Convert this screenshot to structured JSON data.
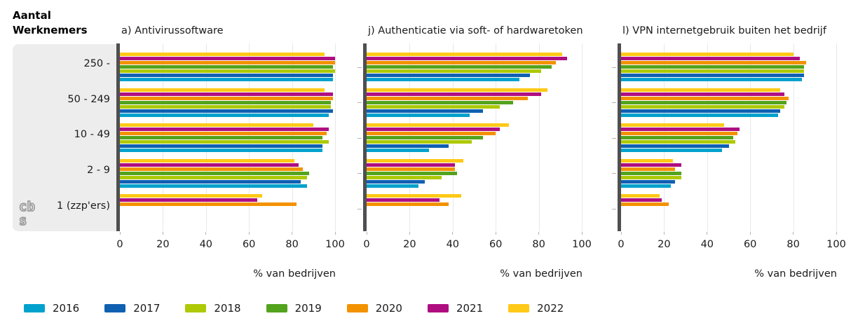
{
  "header": {
    "line1": "Aantal",
    "line2": "Werknemers"
  },
  "axis": {
    "x_ticks": [
      0,
      20,
      40,
      60,
      80,
      100
    ],
    "x_label": "% van bedrijven",
    "xlim": [
      0,
      100
    ]
  },
  "categories": [
    "250 -",
    "50 - 249",
    "10 - 49",
    "2 - 9",
    "1 (zzp'ers)"
  ],
  "legend": {
    "items": [
      {
        "label": "2016",
        "color": "#00a1cd"
      },
      {
        "label": "2017",
        "color": "#1060b2"
      },
      {
        "label": "2018",
        "color": "#aec905"
      },
      {
        "label": "2019",
        "color": "#53a31d"
      },
      {
        "label": "2020",
        "color": "#f39200"
      },
      {
        "label": "2021",
        "color": "#af0e80"
      },
      {
        "label": "2022",
        "color": "#ffc917"
      }
    ]
  },
  "logo": {
    "name": "cbs-logo",
    "text_top": "cb",
    "text_bottom": "s"
  },
  "chart_data": [
    {
      "type": "bar",
      "orientation": "horizontal",
      "title": "a) Antivirussoftware",
      "xlabel": "% van bedrijven",
      "xlim": [
        0,
        100
      ],
      "grid": true,
      "categories": [
        "250 -",
        "50 - 249",
        "10 - 49",
        "2 - 9",
        "1 (zzp'ers)"
      ],
      "series": [
        {
          "name": "2016",
          "values": [
            99,
            97,
            94,
            87,
            null
          ]
        },
        {
          "name": "2017",
          "values": [
            99,
            99,
            94,
            84,
            null
          ]
        },
        {
          "name": "2018",
          "values": [
            100,
            98,
            97,
            87,
            null
          ]
        },
        {
          "name": "2019",
          "values": [
            99,
            98,
            94,
            88,
            null
          ]
        },
        {
          "name": "2020",
          "values": [
            100,
            99,
            96,
            85,
            82
          ]
        },
        {
          "name": "2021",
          "values": [
            100,
            99,
            97,
            83,
            64
          ]
        },
        {
          "name": "2022",
          "values": [
            95,
            95,
            90,
            81,
            66
          ]
        }
      ]
    },
    {
      "type": "bar",
      "orientation": "horizontal",
      "title": "j) Authenticatie via soft- of hardwaretoken",
      "xlabel": "% van bedrijven",
      "xlim": [
        0,
        100
      ],
      "grid": true,
      "categories": [
        "250 -",
        "50 - 249",
        "10 - 49",
        "2 - 9",
        "1 (zzp'ers)"
      ],
      "series": [
        {
          "name": "2016",
          "values": [
            71,
            48,
            29,
            24,
            null
          ]
        },
        {
          "name": "2017",
          "values": [
            76,
            54,
            38,
            27,
            null
          ]
        },
        {
          "name": "2018",
          "values": [
            81,
            62,
            49,
            35,
            null
          ]
        },
        {
          "name": "2019",
          "values": [
            86,
            68,
            54,
            42,
            null
          ]
        },
        {
          "name": "2020",
          "values": [
            88,
            75,
            60,
            41,
            38
          ]
        },
        {
          "name": "2021",
          "values": [
            93,
            81,
            62,
            41,
            34
          ]
        },
        {
          "name": "2022",
          "values": [
            91,
            84,
            66,
            45,
            44
          ]
        }
      ]
    },
    {
      "type": "bar",
      "orientation": "horizontal",
      "title": "l) VPN internetgebruik buiten het bedrijf",
      "xlabel": "% van bedrijven",
      "xlim": [
        0,
        100
      ],
      "grid": true,
      "categories": [
        "250 -",
        "50 - 249",
        "10 - 49",
        "2 - 9",
        "1 (zzp'ers)"
      ],
      "series": [
        {
          "name": "2016",
          "values": [
            84,
            73,
            47,
            23,
            null
          ]
        },
        {
          "name": "2017",
          "values": [
            85,
            74,
            50,
            25,
            null
          ]
        },
        {
          "name": "2018",
          "values": [
            85,
            76,
            53,
            28,
            null
          ]
        },
        {
          "name": "2019",
          "values": [
            85,
            77,
            52,
            28,
            null
          ]
        },
        {
          "name": "2020",
          "values": [
            86,
            78,
            54,
            25,
            22
          ]
        },
        {
          "name": "2021",
          "values": [
            83,
            76,
            55,
            28,
            19
          ]
        },
        {
          "name": "2022",
          "values": [
            80,
            74,
            48,
            24,
            18
          ]
        }
      ]
    }
  ]
}
